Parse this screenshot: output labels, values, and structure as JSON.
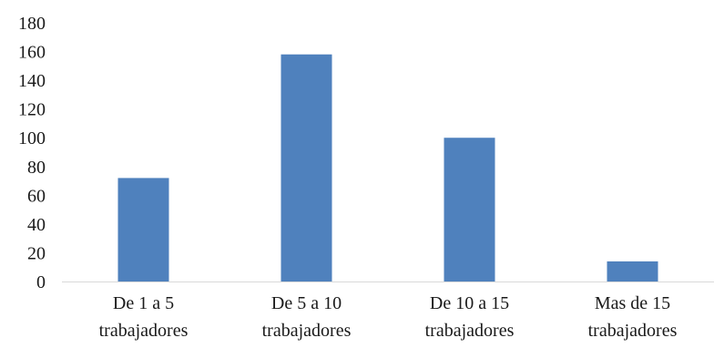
{
  "chart_data": {
    "type": "bar",
    "title": "",
    "xlabel": "",
    "ylabel": "",
    "categories": [
      [
        "De 1 a 5",
        "trabajadores"
      ],
      [
        "De 5 a 10",
        "trabajadores"
      ],
      [
        "De 10 a 15",
        "trabajadores"
      ],
      [
        "Mas de 15",
        "trabajadores"
      ]
    ],
    "values": [
      72,
      158,
      100,
      14
    ],
    "ylim": [
      0,
      180
    ],
    "yticks": [
      0,
      20,
      40,
      60,
      80,
      100,
      120,
      140,
      160,
      180
    ],
    "grid": false,
    "legend": "none",
    "bar_color": "#4f81bd",
    "axis_color": "#d9d9d9"
  }
}
